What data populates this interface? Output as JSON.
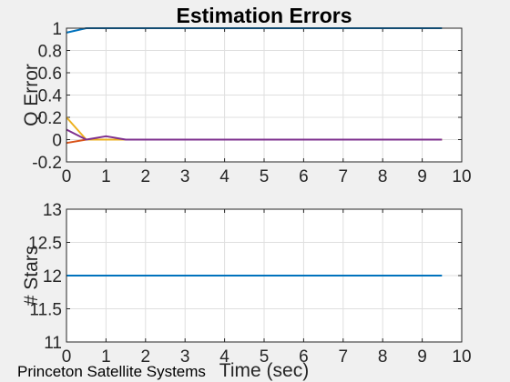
{
  "footer": {
    "text": "Princeton Satellite Systems",
    "logo": "pss-crescent-logo"
  },
  "chart_data": [
    {
      "type": "line",
      "title": "Estimation Errors",
      "xlabel": "",
      "ylabel": "Q Error",
      "xlim": [
        0,
        10
      ],
      "ylim": [
        -0.2,
        1
      ],
      "xticks": [
        "0",
        "1",
        "2",
        "3",
        "4",
        "5",
        "6",
        "7",
        "8",
        "9",
        "10"
      ],
      "yticks": [
        "-0.2",
        "0",
        "0.2",
        "0.4",
        "0.6",
        "0.8",
        "1"
      ],
      "grid": true,
      "x": [
        0,
        0.5,
        1,
        1.5,
        2,
        2.5,
        3,
        3.5,
        4,
        4.5,
        5,
        5.5,
        6,
        6.5,
        7,
        7.5,
        8,
        8.5,
        9,
        9.5
      ],
      "series": [
        {
          "color": "#0072bd",
          "values": [
            0.96,
            1.0,
            1.0,
            1.0,
            1.0,
            1.0,
            1.0,
            1.0,
            1.0,
            1.0,
            1.0,
            1.0,
            1.0,
            1.0,
            1.0,
            1.0,
            1.0,
            1.0,
            1.0,
            1.0
          ]
        },
        {
          "color": "#d95319",
          "values": [
            -0.03,
            0.0,
            0.0,
            0.0,
            0.0,
            0.0,
            0.0,
            0.0,
            0.0,
            0.0,
            0.0,
            0.0,
            0.0,
            0.0,
            0.0,
            0.0,
            0.0,
            0.0,
            0.0,
            0.0
          ]
        },
        {
          "color": "#edb120",
          "values": [
            0.2,
            0.0,
            0.0,
            0.0,
            0.0,
            0.0,
            0.0,
            0.0,
            0.0,
            0.0,
            0.0,
            0.0,
            0.0,
            0.0,
            0.0,
            0.0,
            0.0,
            0.0,
            0.0,
            0.0
          ]
        },
        {
          "color": "#7e2f8e",
          "values": [
            0.09,
            0.0,
            0.03,
            0.0,
            0.0,
            0.0,
            0.0,
            0.0,
            0.0,
            0.0,
            0.0,
            0.0,
            0.0,
            0.0,
            0.0,
            0.0,
            0.0,
            0.0,
            0.0,
            0.0
          ]
        }
      ]
    },
    {
      "type": "line",
      "title": "",
      "xlabel": "Time (sec)",
      "ylabel": "# Stars",
      "xlim": [
        0,
        10
      ],
      "ylim": [
        11,
        13
      ],
      "xticks": [
        "0",
        "1",
        "2",
        "3",
        "4",
        "5",
        "6",
        "7",
        "8",
        "9",
        "10"
      ],
      "yticks": [
        "11",
        "11.5",
        "12",
        "12.5",
        "13"
      ],
      "grid": true,
      "x": [
        0,
        9.5
      ],
      "series": [
        {
          "color": "#0072bd",
          "values": [
            12,
            12
          ]
        }
      ]
    }
  ]
}
